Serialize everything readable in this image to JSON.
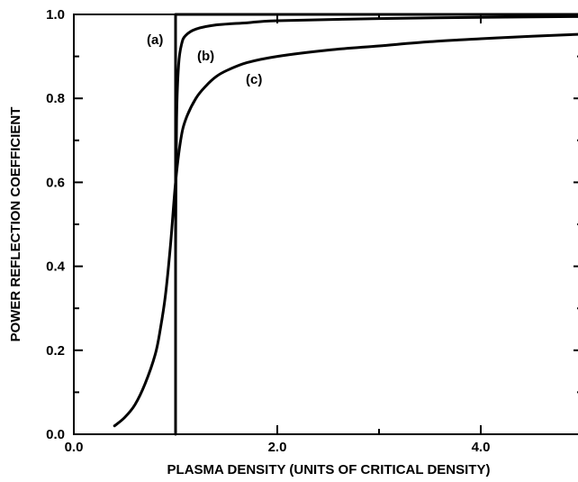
{
  "chart_data": {
    "type": "line",
    "title": "",
    "xlabel": "PLASMA DENSITY (UNITS OF CRITICAL DENSITY)",
    "ylabel": "POWER REFLECTION COEFFICIENT",
    "xlim": [
      0.0,
      5.0
    ],
    "ylim": [
      0.0,
      1.0
    ],
    "grid": false,
    "x_ticks": [
      "0.0",
      "2.0",
      "4.0"
    ],
    "y_ticks": [
      "0.0",
      "0.2",
      "0.4",
      "0.6",
      "0.8",
      "1.0"
    ],
    "series": [
      {
        "name": "(a)",
        "x": [
          1.0,
          1.0,
          5.0
        ],
        "y": [
          0.0,
          1.0,
          1.0
        ]
      },
      {
        "name": "(b)",
        "x": [
          1.0,
          1.01,
          1.03,
          1.06,
          1.1,
          1.2,
          1.4,
          1.7,
          2.0,
          3.0,
          4.0,
          5.0
        ],
        "y": [
          0.43,
          0.75,
          0.88,
          0.93,
          0.95,
          0.965,
          0.975,
          0.98,
          0.985,
          0.99,
          0.993,
          0.995
        ]
      },
      {
        "name": "(c)",
        "x": [
          0.4,
          0.5,
          0.6,
          0.7,
          0.8,
          0.85,
          0.9,
          0.95,
          1.0,
          1.05,
          1.1,
          1.2,
          1.3,
          1.4,
          1.5,
          1.7,
          2.0,
          2.5,
          3.0,
          3.5,
          4.0,
          4.5,
          5.0
        ],
        "y": [
          0.02,
          0.04,
          0.07,
          0.12,
          0.19,
          0.25,
          0.33,
          0.45,
          0.6,
          0.7,
          0.75,
          0.8,
          0.83,
          0.852,
          0.866,
          0.885,
          0.9,
          0.915,
          0.925,
          0.935,
          0.942,
          0.948,
          0.953
        ]
      }
    ],
    "annotations": [
      "(a)",
      "(b)",
      "(c)"
    ]
  }
}
